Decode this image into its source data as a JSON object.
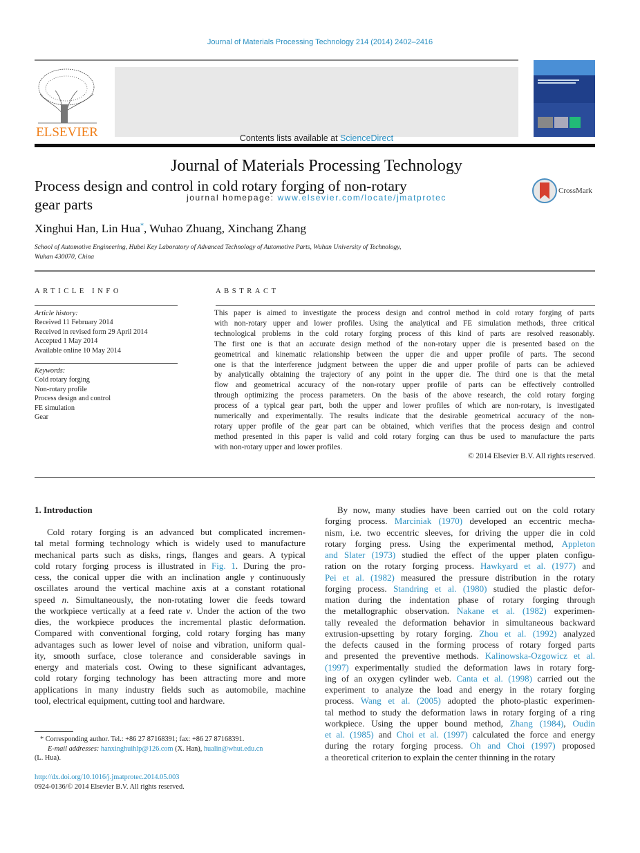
{
  "header": {
    "citation": "Journal of Materials Processing Technology 214 (2014) 2402–2416",
    "contents_prefix": "Contents lists available at ",
    "contents_link": "ScienceDirect",
    "journal_title": "Journal of Materials Processing Technology",
    "homepage_prefix": "journal homepage: ",
    "homepage_link": "www.elsevier.com/locate/jmatprotec",
    "publisher_logo": "ELSEVIER",
    "crossmark": "CrossMark",
    "colors": {
      "link": "#2a8fc1",
      "elsevier_orange": "#f07f1a",
      "cover_blue": "#2a4c9a"
    }
  },
  "article": {
    "title_line1": "Process design and control in cold rotary forging of non-rotary",
    "title_line2": "gear parts",
    "authors_a": "Xinghui Han, Lin Hua",
    "authors_star": "*",
    "authors_b": ", Wuhao Zhuang, Xinchang Zhang",
    "affiliation_line1": "School of Automotive Engineering, Hubei Key Laboratory of Advanced Technology of Automotive Parts, Wuhan University of Technology,",
    "affiliation_line2": "Wuhan 430070, China"
  },
  "article_info": {
    "heading": "ARTICLE INFO",
    "history_label": "Article history:",
    "history": [
      "Received 11 February 2014",
      "Received in revised form 29 April 2014",
      "Accepted 1 May 2014",
      "Available online 10 May 2014"
    ],
    "keywords_label": "Keywords:",
    "keywords": [
      "Cold rotary forging",
      "Non-rotary profile",
      "Process design and control",
      "FE simulation",
      "Gear"
    ]
  },
  "abstract": {
    "heading": "ABSTRACT",
    "lines": [
      "This paper is aimed to investigate the process design and control method in cold rotary forging of parts",
      "with non-rotary upper and lower profiles. Using the analytical and FE simulation methods, three critical",
      "technological problems in the cold rotary forging process of this kind of parts are resolved reasonably.",
      "The first one is that an accurate design method of the non-rotary upper die is presented based on the",
      "geometrical and kinematic relationship between the upper die and upper profile of parts. The second",
      "one is that the interference judgment between the upper die and upper profile of parts can be achieved",
      "by analytically obtaining the trajectory of any point in the upper die. The third one is that the metal",
      "flow and geometrical accuracy of the non-rotary upper profile of parts can be effectively controlled",
      "through optimizing the process parameters. On the basis of the above research, the cold rotary forging",
      "process of a typical gear part, both the upper and lower profiles of which are non-rotary, is investigated",
      "numerically and experimentally. The results indicate that the desirable geometrical accuracy of the non-",
      "rotary upper profile of the gear part can be obtained, which verifies that the process design and control",
      "method presented in this paper is valid and cold rotary forging can thus be used to manufacture the parts",
      "with non-rotary upper and lower profiles."
    ],
    "copyright": "© 2014 Elsevier B.V. All rights reserved."
  },
  "body": {
    "intro_heading": "1.  Introduction",
    "left_lines": [
      [
        [
          "Cold rotary forging is an advanced but complicated incremen-",
          0
        ]
      ],
      [
        [
          "tal metal forming technology which is widely used to manufacture",
          0
        ]
      ],
      [
        [
          "mechanical parts such as disks, rings, flanges and gears. A typical",
          0
        ]
      ],
      [
        [
          "cold rotary forging process is illustrated in ",
          0
        ],
        [
          "Fig. 1",
          1
        ],
        [
          ". During the pro-",
          0
        ]
      ],
      [
        [
          "cess, the conical upper die with an inclination angle ",
          0
        ],
        [
          "γ",
          2
        ],
        [
          " continuously",
          0
        ]
      ],
      [
        [
          "oscillates around the vertical machine axis at a constant rotational",
          0
        ]
      ],
      [
        [
          "speed ",
          0
        ],
        [
          "n",
          2
        ],
        [
          ". Simultaneously, the non-rotating lower die feeds toward",
          0
        ]
      ],
      [
        [
          "the workpiece vertically at a feed rate ",
          0
        ],
        [
          "v",
          2
        ],
        [
          ". Under the action of the two",
          0
        ]
      ],
      [
        [
          "dies, the workpiece produces the incremental plastic deformation.",
          0
        ]
      ],
      [
        [
          "Compared with conventional forging, cold rotary forging has many",
          0
        ]
      ],
      [
        [
          "advantages such as lower level of noise and vibration, uniform qual-",
          0
        ]
      ],
      [
        [
          "ity, smooth surface, close tolerance and considerable savings in",
          0
        ]
      ],
      [
        [
          "energy and materials cost. Owing to these significant advantages,",
          0
        ]
      ],
      [
        [
          "cold rotary forging technology has been attracting more and more",
          0
        ]
      ],
      [
        [
          "applications in many industry fields such as automobile, machine",
          0
        ]
      ],
      [
        [
          "tool, electrical equipment, cutting tool and hardware.",
          0
        ]
      ]
    ],
    "right_lines": [
      [
        [
          "By now, many studies have been carried out on the cold rotary",
          0
        ]
      ],
      [
        [
          "forging process. ",
          0
        ],
        [
          "Marciniak (1970)",
          1
        ],
        [
          " developed an eccentric mecha-",
          0
        ]
      ],
      [
        [
          "nism, i.e. two eccentric sleeves, for driving the upper die in cold",
          0
        ]
      ],
      [
        [
          "rotary forging press. Using the experimental method, ",
          0
        ],
        [
          "Appleton",
          1
        ]
      ],
      [
        [
          "and Slater (1973)",
          1
        ],
        [
          " studied the effect of the upper platen configu-",
          0
        ]
      ],
      [
        [
          "ration on the rotary forging process. ",
          0
        ],
        [
          "Hawkyard et al. (1977)",
          1
        ],
        [
          " and",
          0
        ]
      ],
      [
        [
          "Pei et al. (1982)",
          1
        ],
        [
          " measured the pressure distribution in the rotary",
          0
        ]
      ],
      [
        [
          "forging process. ",
          0
        ],
        [
          "Standring et al. (1980)",
          1
        ],
        [
          " studied the plastic defor-",
          0
        ]
      ],
      [
        [
          "mation during the indentation phase of rotary forging through",
          0
        ]
      ],
      [
        [
          "the metallographic observation. ",
          0
        ],
        [
          "Nakane et al. (1982)",
          1
        ],
        [
          " experimen-",
          0
        ]
      ],
      [
        [
          "tally revealed the deformation behavior in simultaneous backward",
          0
        ]
      ],
      [
        [
          "extrusion-upsetting by rotary forging. ",
          0
        ],
        [
          "Zhou et al. (1992)",
          1
        ],
        [
          " analyzed",
          0
        ]
      ],
      [
        [
          "the defects caused in the forming process of rotary forged parts",
          0
        ]
      ],
      [
        [
          "and presented the preventive methods. ",
          0
        ],
        [
          "Kalinowska-Ozgowicz et al.",
          1
        ]
      ],
      [
        [
          "(1997)",
          1
        ],
        [
          " experimentally studied the deformation laws in rotary forg-",
          0
        ]
      ],
      [
        [
          "ing of an oxygen cylinder web. ",
          0
        ],
        [
          "Canta et al. (1998)",
          1
        ],
        [
          " carried out the",
          0
        ]
      ],
      [
        [
          "experiment to analyze the load and energy in the rotary forging",
          0
        ]
      ],
      [
        [
          "process. ",
          0
        ],
        [
          "Wang et al. (2005)",
          1
        ],
        [
          " adopted the photo-plastic experimen-",
          0
        ]
      ],
      [
        [
          "tal method to study the deformation laws in rotary forging of a ring",
          0
        ]
      ],
      [
        [
          "workpiece. Using the upper bound method, ",
          0
        ],
        [
          "Zhang (1984)",
          1
        ],
        [
          ", ",
          0
        ],
        [
          "Oudin",
          1
        ]
      ],
      [
        [
          "et al. (1985)",
          1
        ],
        [
          " and ",
          0
        ],
        [
          "Choi et al. (1997)",
          1
        ],
        [
          " calculated the force and energy",
          0
        ]
      ],
      [
        [
          "during the rotary forging process. ",
          0
        ],
        [
          "Oh and Choi (1997)",
          1
        ],
        [
          " proposed",
          0
        ]
      ],
      [
        [
          "a theoretical criterion to explain the center thinning in the rotary",
          0
        ]
      ]
    ]
  },
  "footnote": {
    "star": "*",
    "corresponding": " Corresponding author. Tel.: +86 27 87168391; fax: +86 27 87168391.",
    "email_label": "E-mail addresses: ",
    "email1": "hanxinghuihlp@126.com",
    "email1_name": " (X. Han), ",
    "email2": "hualin@whut.edu.cn",
    "email2_name": "(L. Hua).",
    "doi": "http://dx.doi.org/10.1016/j.jmatprotec.2014.05.003",
    "issn": "0924-0136/© 2014 Elsevier B.V. All rights reserved."
  }
}
